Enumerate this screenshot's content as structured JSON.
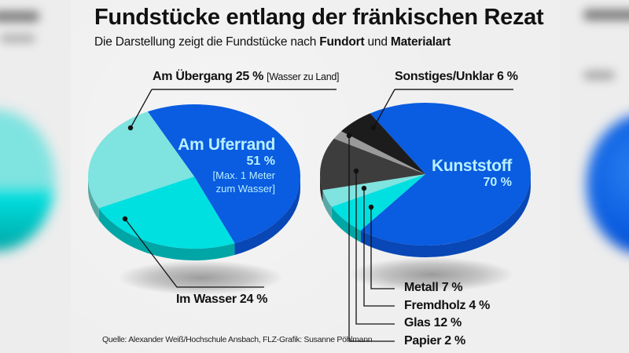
{
  "title": "Fundstücke entlang der fränkischen Rezat",
  "subtitle": {
    "prefix": "Die Darstellung zeigt die Fundstücke nach ",
    "bold1": "Fundort",
    "middle": " und ",
    "bold2": "Materialart"
  },
  "source": "Quelle: Alexander Weiß/Hochschule Ansbach, FLZ-Grafik: Susanne Pöhlmann",
  "colors": {
    "blue": "#0a5ce0",
    "blue_side": "#0847b5",
    "cyan": "#00e0e0",
    "cyan_side": "#00a6a6",
    "turquoise": "#7fe3e0",
    "turquoise_side": "#58a9a6",
    "black": "#1c1c1c",
    "black_side": "#111111",
    "darkgray": "#3d3d3d",
    "darkgray_side": "#2a2a2a",
    "lightgray": "#9a9a9a",
    "lightgray_side": "#6f6f6f",
    "inner_label": "#b8f0ff",
    "background": "#efefef"
  },
  "chart_data": [
    {
      "type": "pie",
      "title": "Fundort",
      "start_angle_deg": 244,
      "direction": "clockwise",
      "slices": [
        {
          "key": "uferrand",
          "label": "Am Uferrand",
          "value": 51,
          "value_label": "51 %",
          "note": "[Max. 1 Meter zum Wasser]",
          "note_lines": [
            "[Max. 1 Meter",
            "zum Wasser]"
          ],
          "color": "blue",
          "side": "blue_side"
        },
        {
          "key": "wasser",
          "label": "Im Wasser",
          "value": 24,
          "value_label": "Im Wasser 24 %",
          "color": "cyan",
          "side": "cyan_side"
        },
        {
          "key": "uebergang",
          "label": "Am Übergang",
          "value": 25,
          "value_label": "Am Übergang 25 %",
          "note": "[Wasser zu Land]",
          "color": "turquoise",
          "side": "turquoise_side"
        }
      ]
    },
    {
      "type": "pie",
      "title": "Materialart",
      "start_angle_deg": 238.4,
      "direction": "clockwise",
      "slices": [
        {
          "key": "kunststoff",
          "label": "Kunststoff",
          "value": 70,
          "value_label": "70 %",
          "color": "blue",
          "side": "blue_side"
        },
        {
          "key": "metall",
          "label": "Metall",
          "value": 7,
          "value_label": "Metall 7 %",
          "color": "cyan",
          "side": "cyan_side"
        },
        {
          "key": "fremdholz",
          "label": "Fremdholz",
          "value": 4,
          "value_label": "Fremdholz 4 %",
          "color": "turquoise",
          "side": "turquoise_side"
        },
        {
          "key": "glas",
          "label": "Glas",
          "value": 12,
          "value_label": "Glas 12 %",
          "color": "darkgray",
          "side": "darkgray_side"
        },
        {
          "key": "papier",
          "label": "Papier",
          "value": 2,
          "value_label": "Papier 2 %",
          "color": "lightgray",
          "side": "lightgray_side"
        },
        {
          "key": "sonstiges",
          "label": "Sonstiges/Unklar",
          "value": 6,
          "value_label": "Sonstiges/Unklar 6 %",
          "color": "black",
          "side": "black_side"
        }
      ]
    }
  ]
}
